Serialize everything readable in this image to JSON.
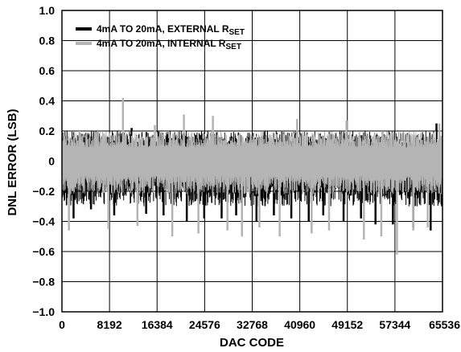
{
  "chart_data": {
    "type": "line",
    "title": "",
    "xlabel": "DAC CODE",
    "ylabel": "DNL ERROR (LSB)",
    "xlim": [
      0,
      65536
    ],
    "ylim": [
      -1.0,
      1.0
    ],
    "x_ticks": [
      0,
      8192,
      16384,
      24576,
      32768,
      40960,
      49152,
      57344,
      65536
    ],
    "x_tick_labels": [
      "0",
      "8192",
      "16384",
      "24576",
      "32768",
      "40960",
      "49152",
      "57344",
      "65536"
    ],
    "y_ticks": [
      1.0,
      0.8,
      0.6,
      0.4,
      0.2,
      0,
      -0.2,
      -0.4,
      -0.6,
      -0.8,
      -1.0
    ],
    "y_tick_labels": [
      "1.0",
      "0.8",
      "0.6",
      "0.4",
      "0.2",
      "0",
      "−0.2",
      "−0.4",
      "−0.6",
      "−0.8",
      "−1.0"
    ],
    "grid": true,
    "legend_position": "top-left",
    "series": [
      {
        "name": "4mA TO 20mA, EXTERNAL R",
        "name_sub": "SET",
        "color": "#000000",
        "band": [
          -0.3,
          0.2
        ],
        "spikes": [
          {
            "x": 2000,
            "y": -0.38
          },
          {
            "x": 5000,
            "y": -0.32
          },
          {
            "x": 9000,
            "y": -0.36
          },
          {
            "x": 12000,
            "y": 0.22
          },
          {
            "x": 14500,
            "y": -0.35
          },
          {
            "x": 17500,
            "y": -0.36
          },
          {
            "x": 21500,
            "y": -0.4
          },
          {
            "x": 24500,
            "y": -0.38
          },
          {
            "x": 27500,
            "y": -0.38
          },
          {
            "x": 30000,
            "y": -0.36
          },
          {
            "x": 33500,
            "y": -0.4
          },
          {
            "x": 36500,
            "y": -0.36
          },
          {
            "x": 39500,
            "y": -0.38
          },
          {
            "x": 42500,
            "y": -0.4
          },
          {
            "x": 45000,
            "y": -0.36
          },
          {
            "x": 48500,
            "y": -0.4
          },
          {
            "x": 51500,
            "y": -0.38
          },
          {
            "x": 54000,
            "y": -0.42
          },
          {
            "x": 57000,
            "y": -0.42
          },
          {
            "x": 60500,
            "y": -0.44
          },
          {
            "x": 63500,
            "y": -0.46
          },
          {
            "x": 64500,
            "y": 0.25
          }
        ]
      },
      {
        "name": "4mA TO 20mA, INTERNAL R",
        "name_sub": "SET",
        "color": "#b4b4b4",
        "band": [
          -0.22,
          0.2
        ],
        "spikes": [
          {
            "x": 1200,
            "y": -0.46
          },
          {
            "x": 3000,
            "y": 0.2
          },
          {
            "x": 8000,
            "y": -0.45
          },
          {
            "x": 10500,
            "y": 0.42
          },
          {
            "x": 13000,
            "y": -0.43
          },
          {
            "x": 16000,
            "y": 0.24
          },
          {
            "x": 19000,
            "y": -0.5
          },
          {
            "x": 21000,
            "y": 0.31
          },
          {
            "x": 23500,
            "y": -0.48
          },
          {
            "x": 26000,
            "y": 0.3
          },
          {
            "x": 28500,
            "y": -0.46
          },
          {
            "x": 31000,
            "y": -0.5
          },
          {
            "x": 34000,
            "y": -0.44
          },
          {
            "x": 37500,
            "y": -0.5
          },
          {
            "x": 40500,
            "y": 0.28
          },
          {
            "x": 43000,
            "y": -0.48
          },
          {
            "x": 46000,
            "y": -0.46
          },
          {
            "x": 49000,
            "y": 0.27
          },
          {
            "x": 52000,
            "y": -0.52
          },
          {
            "x": 55000,
            "y": -0.5
          },
          {
            "x": 57700,
            "y": -0.62
          },
          {
            "x": 60500,
            "y": -0.46
          },
          {
            "x": 63000,
            "y": -0.44
          },
          {
            "x": 65000,
            "y": 0.25
          }
        ]
      }
    ]
  }
}
